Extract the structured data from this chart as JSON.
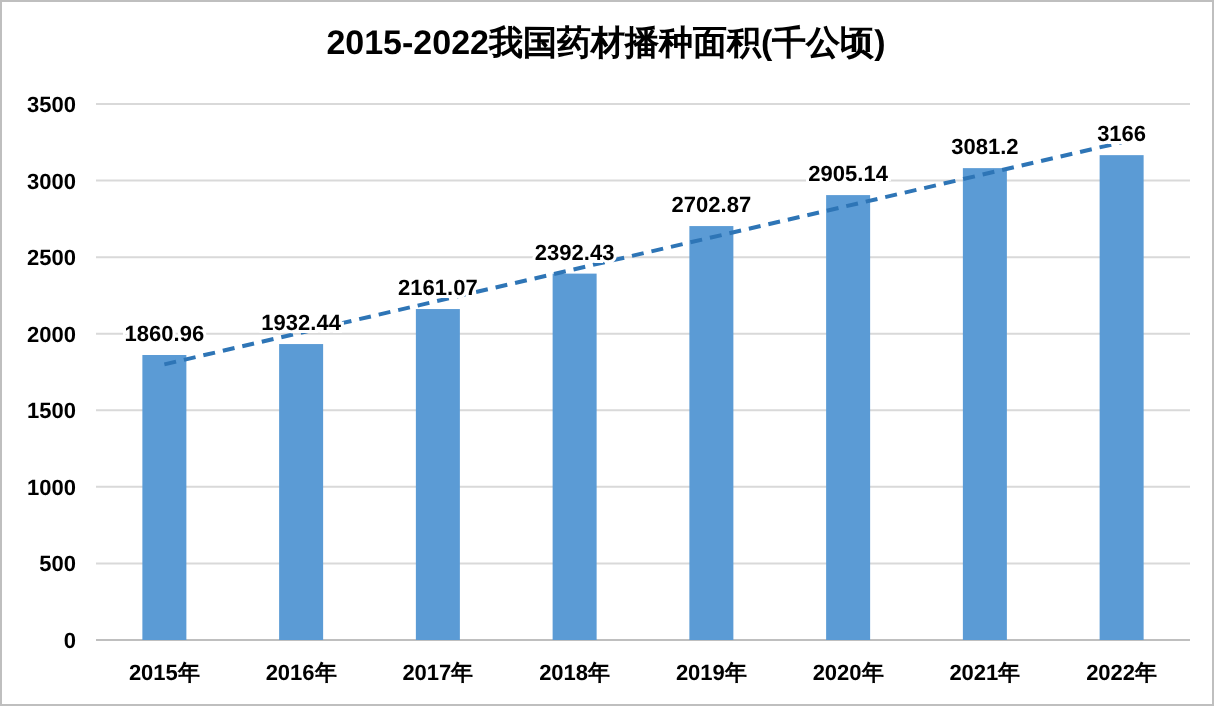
{
  "chart_data": {
    "type": "bar",
    "title": "2015-2022我国药材播种面积(千公顷)",
    "categories": [
      "2015年",
      "2016年",
      "2017年",
      "2018年",
      "2019年",
      "2020年",
      "2021年",
      "2022年"
    ],
    "series": [
      {
        "color": "#5b9bd5",
        "values": [
          1860.96,
          1932.44,
          2161.07,
          2392.43,
          2702.87,
          2905.14,
          3081.2,
          3166
        ],
        "value_labels": [
          "1860.96",
          "1932.44",
          "2161.07",
          "2392.43",
          "2702.87",
          "2905.14",
          "3081.2",
          "3166"
        ]
      },
      {
        "type": "line",
        "x": [
          "2015年",
          "2022年"
        ],
        "values": [
          1800,
          3250
        ],
        "color": "#2e75b6",
        "line_style": "dashed"
      }
    ],
    "ylim": [
      0,
      3500
    ],
    "yticks": [
      0,
      500,
      1000,
      1500,
      2000,
      2500,
      3000,
      3500
    ],
    "grid": "y"
  }
}
